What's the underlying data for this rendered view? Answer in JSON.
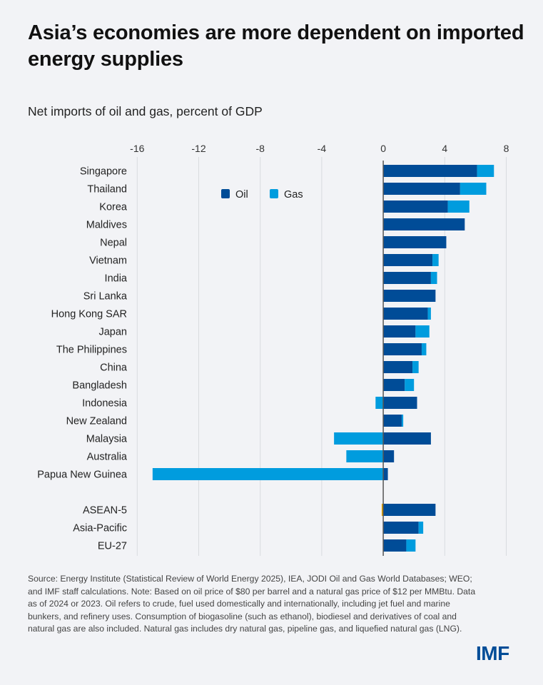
{
  "title": "Asia’s economies are more dependent on imported energy supplies",
  "subtitle": "Net imports of oil and gas, percent of GDP",
  "footer": "Source: Energy Institute (Statistical Review of World Energy 2025), IEA, JODI Oil and Gas World Databases; WEO; and IMF staff calculations. Note: Based on oil price of $80 per barrel and a natural gas price of $12 per MMBtu. Data as of 2024 or 2023.  Oil refers to crude, fuel used domestically and internationally, including jet fuel and marine bunkers, and refinery uses. Consumption of biogasoline (such as ethanol), biodiesel and derivatives of coal and natural gas are also included. Natural gas includes dry natural gas, pipeline gas, and liquefied natural gas (LNG).",
  "logo": "IMF",
  "colors": {
    "oil": "#004C97",
    "gas": "#009CDE",
    "aseanGasMark": "#E8A800",
    "grid": "#D9DBDF",
    "zero": "#555555"
  },
  "chart_data": {
    "type": "bar",
    "orientation": "horizontal",
    "stacked": true,
    "title": "Asia’s economies are more dependent on imported energy supplies",
    "subtitle": "Net imports of oil and gas, percent of GDP",
    "xlabel": "",
    "ylabel": "",
    "xlim": [
      -16,
      8
    ],
    "xticks": [
      -16,
      -12,
      -8,
      -4,
      0,
      4,
      8
    ],
    "tick_labels": [
      "-16",
      "-12",
      "-8",
      "-4",
      "0",
      "4",
      "8"
    ],
    "grid": "vertical",
    "legend": {
      "placement": "top-center",
      "entries": [
        "Oil",
        "Gas"
      ]
    },
    "categories": [
      "Singapore",
      "Thailand",
      "Korea",
      "Maldives",
      "Nepal",
      "Vietnam",
      "India",
      "Sri Lanka",
      "Hong Kong SAR",
      "Japan",
      "The Philippines",
      "China",
      "Bangladesh",
      "Indonesia",
      "New Zealand",
      "Malaysia",
      "Australia",
      "Papua New Guinea",
      "",
      "ASEAN-5",
      "Asia-Pacific",
      "EU-27"
    ],
    "series": [
      {
        "name": "Oil",
        "values": [
          6.1,
          5.0,
          4.2,
          5.3,
          4.1,
          3.2,
          3.1,
          3.4,
          2.9,
          2.1,
          2.5,
          1.9,
          1.4,
          2.2,
          1.2,
          3.1,
          0.7,
          0.3,
          null,
          3.4,
          2.3,
          1.5
        ]
      },
      {
        "name": "Gas",
        "values": [
          1.1,
          1.7,
          1.4,
          0.0,
          0.0,
          0.4,
          0.4,
          0.0,
          0.2,
          0.9,
          0.3,
          0.4,
          0.6,
          -0.5,
          0.1,
          -3.2,
          -2.4,
          -15.0,
          null,
          -0.1,
          0.3,
          0.6
        ]
      }
    ]
  }
}
